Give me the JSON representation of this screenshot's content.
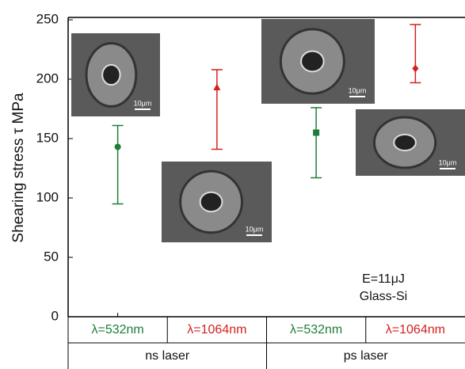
{
  "chart_data": {
    "type": "errorbar",
    "y_label": "Shearing stress  τ  MPa",
    "categories": [
      "λ=532nm",
      "λ=1064nm",
      "λ=532nm",
      "λ=1064nm"
    ],
    "groups": [
      "ns laser",
      "ps laser"
    ],
    "values": [
      143,
      193,
      155,
      209
    ],
    "lower": [
      95,
      141,
      117,
      197
    ],
    "upper": [
      161,
      208,
      176,
      246
    ],
    "colors": [
      "#1e7d3a",
      "#d42020",
      "#1e7d3a",
      "#d42020"
    ],
    "markers": [
      "circle",
      "triangle",
      "square",
      "diamond"
    ],
    "ylim": [
      0,
      250
    ],
    "yticks": [
      0,
      50,
      100,
      150,
      200,
      250
    ],
    "annotations": [
      "E=11μJ",
      "Glass-Si"
    ],
    "insets": [
      "10μm",
      "10μm",
      "10μm",
      "10μm"
    ]
  }
}
